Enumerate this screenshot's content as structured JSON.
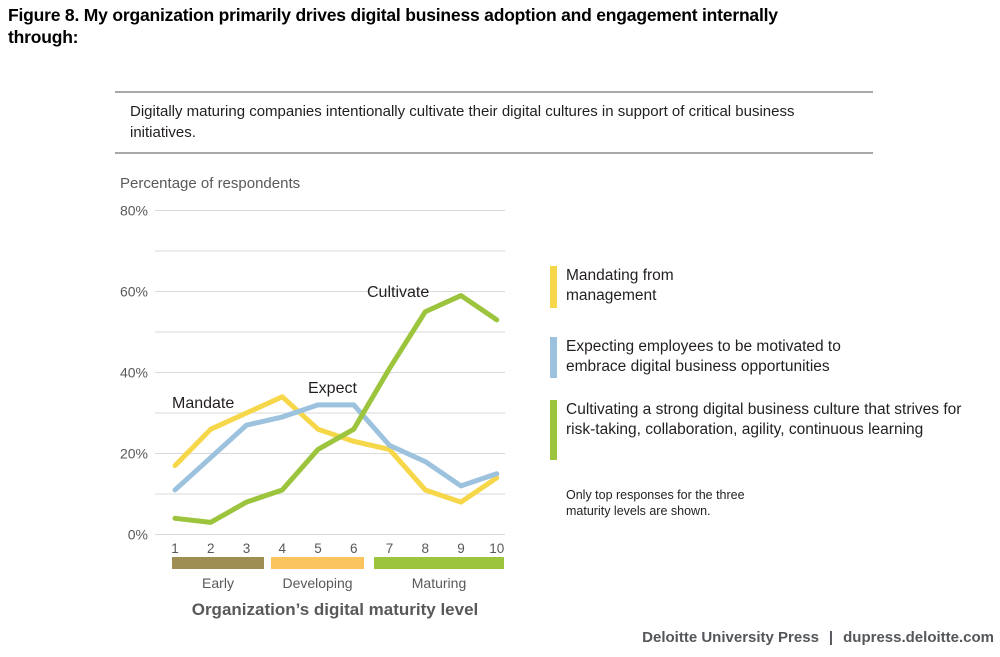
{
  "figure": {
    "title": "Figure 8. My organization primarily drives digital business adoption and engagement internally through:",
    "callout": "Digitally maturing companies intentionally cultivate their digital cultures in support of critical business initiatives.",
    "axis_caption": "Percentage of respondents",
    "note": "Only top responses for the three maturity levels are shown.",
    "footer": {
      "publisher": "Deloitte University Press",
      "separator": "|",
      "site": "dupress.deloitte.com"
    }
  },
  "chart_data": {
    "type": "line",
    "x": [
      1,
      2,
      3,
      4,
      5,
      6,
      7,
      8,
      9,
      10
    ],
    "xlabel": "Organization’s digital maturity level",
    "ylabel": "Percentage of respondents",
    "ylim": [
      0,
      80
    ],
    "grid": true,
    "grid_interval": 10,
    "legend_position": "right",
    "yticks": [
      {
        "value": 0,
        "label": "0%"
      },
      {
        "value": 20,
        "label": "20%"
      },
      {
        "value": 40,
        "label": "40%"
      },
      {
        "value": 60,
        "label": "60%"
      },
      {
        "value": 80,
        "label": "80%"
      }
    ],
    "series": [
      {
        "name": "Mandating from management",
        "short_label": "Mandate",
        "color": "#F7D74A",
        "values": [
          17,
          26,
          30,
          34,
          26,
          23,
          21,
          11,
          8,
          14
        ]
      },
      {
        "name": "Expecting employees to be motivated to embrace digital business opportunities",
        "short_label": "Expect",
        "color": "#9CC2DE",
        "values": [
          11,
          19,
          27,
          29,
          32,
          32,
          22,
          18,
          12,
          15
        ]
      },
      {
        "name": "Cultivating a strong digital business culture that strives for risk-taking, collaboration, agility, continuous learning",
        "short_label": "Cultivate",
        "color": "#9CC43D",
        "values": [
          4,
          3,
          8,
          11,
          21,
          26,
          41,
          55,
          59,
          53
        ]
      }
    ],
    "x_bands": [
      {
        "label": "Early",
        "from": 1,
        "to": 3,
        "color": "#9F8E54"
      },
      {
        "label": "Developing",
        "from": 4,
        "to": 6,
        "color": "#FBC45F"
      },
      {
        "label": "Maturing",
        "from": 7,
        "to": 10,
        "color": "#9CC43D"
      }
    ]
  }
}
